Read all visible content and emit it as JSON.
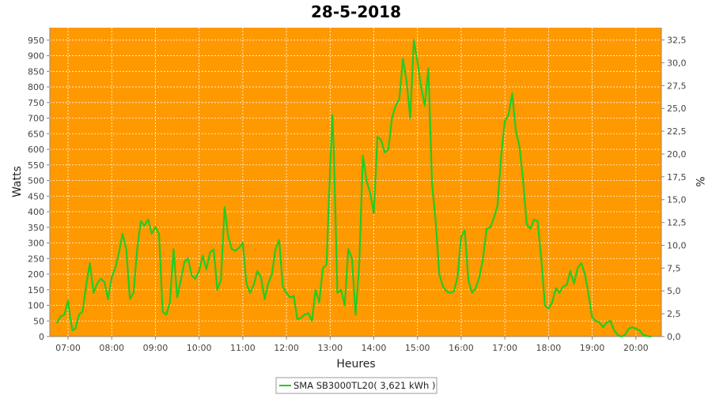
{
  "colors": {
    "plot_background": "#ff9900",
    "series_line": "#22cc22",
    "gridline": "#ffffff",
    "axis": "#888888"
  },
  "chart_data": {
    "type": "line",
    "title": "28-5-2018",
    "xlabel": "Heures",
    "ylabel": "Watts",
    "y2label": "%",
    "xlim": [
      "06:35",
      "20:35"
    ],
    "ylim": [
      0,
      990
    ],
    "y2lim": [
      0,
      33.85
    ],
    "grid": true,
    "legend_position": "bottom-center",
    "x_ticks": [
      "07:00",
      "08:00",
      "09:00",
      "10:00",
      "11:00",
      "12:00",
      "13:00",
      "14:00",
      "15:00",
      "16:00",
      "17:00",
      "18:00",
      "19:00",
      "20:00"
    ],
    "y_ticks": [
      0,
      50,
      100,
      150,
      200,
      250,
      300,
      350,
      400,
      450,
      500,
      550,
      600,
      650,
      700,
      750,
      800,
      850,
      900,
      950
    ],
    "y2_ticks": [
      "0,0",
      "2,5",
      "5,0",
      "7,5",
      "10,0",
      "12,5",
      "15,0",
      "17,5",
      "20,0",
      "22,5",
      "25,0",
      "27,5",
      "30,0",
      "32,5"
    ],
    "series": [
      {
        "name": "SMA SB3000TL20( 3,621 kWh )",
        "points": [
          [
            "06:45",
            45
          ],
          [
            "06:50",
            65
          ],
          [
            "06:55",
            70
          ],
          [
            "07:00",
            115
          ],
          [
            "07:03",
            60
          ],
          [
            "07:06",
            20
          ],
          [
            "07:10",
            25
          ],
          [
            "07:15",
            70
          ],
          [
            "07:20",
            80
          ],
          [
            "07:25",
            165
          ],
          [
            "07:30",
            235
          ],
          [
            "07:35",
            140
          ],
          [
            "07:40",
            170
          ],
          [
            "07:45",
            185
          ],
          [
            "07:50",
            175
          ],
          [
            "07:55",
            120
          ],
          [
            "08:00",
            190
          ],
          [
            "08:05",
            220
          ],
          [
            "08:10",
            270
          ],
          [
            "08:15",
            330
          ],
          [
            "08:20",
            280
          ],
          [
            "08:25",
            120
          ],
          [
            "08:30",
            140
          ],
          [
            "08:35",
            280
          ],
          [
            "08:40",
            370
          ],
          [
            "08:45",
            355
          ],
          [
            "08:50",
            375
          ],
          [
            "08:55",
            330
          ],
          [
            "09:00",
            350
          ],
          [
            "09:05",
            330
          ],
          [
            "09:10",
            80
          ],
          [
            "09:15",
            70
          ],
          [
            "09:20",
            110
          ],
          [
            "09:25",
            280
          ],
          [
            "09:30",
            125
          ],
          [
            "09:35",
            180
          ],
          [
            "09:40",
            240
          ],
          [
            "09:45",
            250
          ],
          [
            "09:50",
            195
          ],
          [
            "09:55",
            185
          ],
          [
            "10:00",
            210
          ],
          [
            "10:05",
            260
          ],
          [
            "10:10",
            215
          ],
          [
            "10:15",
            270
          ],
          [
            "10:20",
            280
          ],
          [
            "10:25",
            150
          ],
          [
            "10:30",
            180
          ],
          [
            "10:35",
            415
          ],
          [
            "10:40",
            320
          ],
          [
            "10:45",
            280
          ],
          [
            "10:50",
            275
          ],
          [
            "10:55",
            285
          ],
          [
            "11:00",
            300
          ],
          [
            "11:05",
            170
          ],
          [
            "11:10",
            140
          ],
          [
            "11:15",
            165
          ],
          [
            "11:20",
            210
          ],
          [
            "11:25",
            190
          ],
          [
            "11:30",
            120
          ],
          [
            "11:35",
            170
          ],
          [
            "11:40",
            200
          ],
          [
            "11:45",
            280
          ],
          [
            "11:50",
            310
          ],
          [
            "11:55",
            160
          ],
          [
            "12:00",
            140
          ],
          [
            "12:05",
            125
          ],
          [
            "12:10",
            130
          ],
          [
            "12:15",
            55
          ],
          [
            "12:20",
            60
          ],
          [
            "12:25",
            70
          ],
          [
            "12:30",
            75
          ],
          [
            "12:35",
            50
          ],
          [
            "12:40",
            150
          ],
          [
            "12:45",
            110
          ],
          [
            "12:50",
            220
          ],
          [
            "12:55",
            230
          ],
          [
            "13:00",
            540
          ],
          [
            "13:03",
            710
          ],
          [
            "13:05",
            600
          ],
          [
            "13:10",
            140
          ],
          [
            "13:15",
            150
          ],
          [
            "13:20",
            100
          ],
          [
            "13:25",
            280
          ],
          [
            "13:30",
            250
          ],
          [
            "13:35",
            70
          ],
          [
            "13:40",
            230
          ],
          [
            "13:45",
            580
          ],
          [
            "13:50",
            500
          ],
          [
            "13:55",
            460
          ],
          [
            "14:00",
            395
          ],
          [
            "14:05",
            640
          ],
          [
            "14:10",
            630
          ],
          [
            "14:15",
            590
          ],
          [
            "14:20",
            600
          ],
          [
            "14:25",
            700
          ],
          [
            "14:30",
            740
          ],
          [
            "14:35",
            760
          ],
          [
            "14:40",
            890
          ],
          [
            "14:45",
            820
          ],
          [
            "14:50",
            700
          ],
          [
            "14:55",
            950
          ],
          [
            "15:00",
            880
          ],
          [
            "15:05",
            800
          ],
          [
            "15:10",
            740
          ],
          [
            "15:15",
            860
          ],
          [
            "15:20",
            490
          ],
          [
            "15:25",
            370
          ],
          [
            "15:30",
            200
          ],
          [
            "15:35",
            160
          ],
          [
            "15:40",
            145
          ],
          [
            "15:45",
            140
          ],
          [
            "15:50",
            145
          ],
          [
            "15:55",
            190
          ],
          [
            "16:00",
            320
          ],
          [
            "16:05",
            340
          ],
          [
            "16:10",
            180
          ],
          [
            "16:15",
            140
          ],
          [
            "16:20",
            155
          ],
          [
            "16:25",
            190
          ],
          [
            "16:30",
            250
          ],
          [
            "16:35",
            345
          ],
          [
            "16:40",
            350
          ],
          [
            "16:45",
            380
          ],
          [
            "16:50",
            420
          ],
          [
            "16:55",
            580
          ],
          [
            "17:00",
            690
          ],
          [
            "17:05",
            710
          ],
          [
            "17:10",
            780
          ],
          [
            "17:15",
            660
          ],
          [
            "17:20",
            610
          ],
          [
            "17:25",
            500
          ],
          [
            "17:30",
            360
          ],
          [
            "17:35",
            345
          ],
          [
            "17:40",
            375
          ],
          [
            "17:45",
            370
          ],
          [
            "17:50",
            250
          ],
          [
            "17:55",
            100
          ],
          [
            "18:00",
            90
          ],
          [
            "18:05",
            110
          ],
          [
            "18:10",
            155
          ],
          [
            "18:15",
            140
          ],
          [
            "18:20",
            160
          ],
          [
            "18:25",
            165
          ],
          [
            "18:30",
            210
          ],
          [
            "18:35",
            170
          ],
          [
            "18:40",
            220
          ],
          [
            "18:45",
            235
          ],
          [
            "18:50",
            200
          ],
          [
            "18:55",
            135
          ],
          [
            "19:00",
            60
          ],
          [
            "19:05",
            50
          ],
          [
            "19:10",
            45
          ],
          [
            "19:15",
            30
          ],
          [
            "19:20",
            45
          ],
          [
            "19:25",
            50
          ],
          [
            "19:30",
            20
          ],
          [
            "19:35",
            5
          ],
          [
            "19:40",
            0
          ],
          [
            "19:45",
            5
          ],
          [
            "19:50",
            25
          ],
          [
            "19:55",
            30
          ],
          [
            "20:00",
            25
          ],
          [
            "20:05",
            20
          ],
          [
            "20:10",
            5
          ],
          [
            "20:15",
            2
          ],
          [
            "20:20",
            0
          ]
        ]
      }
    ]
  }
}
